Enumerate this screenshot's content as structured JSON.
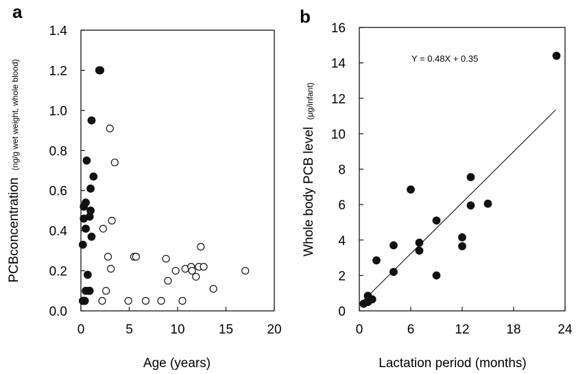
{
  "chart_data": [
    {
      "panel": "a",
      "type": "scatter",
      "xlabel": "Age (years)",
      "ylabel_main": "PCBconcentration",
      "ylabel_sub": "(ng/g wet  weight, whole blood)",
      "xlim": [
        0,
        20
      ],
      "ylim": [
        0,
        1.4
      ],
      "xticks": [
        0,
        5,
        10,
        15,
        20
      ],
      "yticks": [
        "0.0",
        "0.2",
        "0.4",
        "0.6",
        "0.8",
        "1.0",
        "1.2",
        "1.4"
      ],
      "grid": false,
      "series": [
        {
          "marker": "filled-circle",
          "color": "#111111",
          "points": [
            [
              0.2,
              0.05
            ],
            [
              0.3,
              0.05
            ],
            [
              0.4,
              0.05
            ],
            [
              0.2,
              0.33
            ],
            [
              0.3,
              0.46
            ],
            [
              0.3,
              0.52
            ],
            [
              0.5,
              0.41
            ],
            [
              0.5,
              0.54
            ],
            [
              0.6,
              0.75
            ],
            [
              0.5,
              0.1
            ],
            [
              0.7,
              0.18
            ],
            [
              0.8,
              0.1
            ],
            [
              0.9,
              0.1
            ],
            [
              0.9,
              0.47
            ],
            [
              1.0,
              0.5
            ],
            [
              1.0,
              0.61
            ],
            [
              1.1,
              0.37
            ],
            [
              1.1,
              0.95
            ],
            [
              1.3,
              0.67
            ],
            [
              1.9,
              1.2
            ],
            [
              2.0,
              1.2
            ]
          ]
        },
        {
          "marker": "open-circle",
          "color": "#111111",
          "points": [
            [
              2.2,
              0.05
            ],
            [
              2.3,
              0.41
            ],
            [
              2.6,
              0.1
            ],
            [
              2.8,
              0.27
            ],
            [
              3.0,
              0.91
            ],
            [
              3.1,
              0.21
            ],
            [
              3.2,
              0.45
            ],
            [
              3.5,
              0.74
            ],
            [
              4.9,
              0.05
            ],
            [
              5.5,
              0.27
            ],
            [
              5.7,
              0.27
            ],
            [
              6.7,
              0.05
            ],
            [
              8.3,
              0.05
            ],
            [
              8.8,
              0.26
            ],
            [
              9.0,
              0.15
            ],
            [
              9.8,
              0.2
            ],
            [
              10.5,
              0.05
            ],
            [
              10.8,
              0.21
            ],
            [
              11.4,
              0.22
            ],
            [
              11.5,
              0.2
            ],
            [
              11.9,
              0.17
            ],
            [
              12.2,
              0.22
            ],
            [
              12.4,
              0.32
            ],
            [
              12.7,
              0.22
            ],
            [
              13.7,
              0.11
            ],
            [
              17.0,
              0.2
            ]
          ]
        }
      ]
    },
    {
      "panel": "b",
      "type": "scatter",
      "xlabel": "Lactation period (months)",
      "ylabel_main": "Whole body PCB level",
      "ylabel_sub": "(μg/infant)",
      "xlim": [
        0,
        24
      ],
      "ylim": [
        0,
        16
      ],
      "xticks": [
        0,
        6,
        12,
        18,
        24
      ],
      "yticks": [
        0,
        2,
        4,
        6,
        8,
        10,
        12,
        14,
        16
      ],
      "grid": false,
      "annotation": "Y =  0.48X + 0.35",
      "regression": {
        "slope": 0.48,
        "intercept": 0.35,
        "x_range": [
          0.5,
          22.9
        ]
      },
      "series": [
        {
          "marker": "filled-circle",
          "color": "#111111",
          "points": [
            [
              0.5,
              0.4
            ],
            [
              1.0,
              0.5
            ],
            [
              1.0,
              0.85
            ],
            [
              1.5,
              0.65
            ],
            [
              2.0,
              2.85
            ],
            [
              4.0,
              2.2
            ],
            [
              4.0,
              3.7
            ],
            [
              6.0,
              6.85
            ],
            [
              7.0,
              3.4
            ],
            [
              7.0,
              3.85
            ],
            [
              9.0,
              2.0
            ],
            [
              9.0,
              5.1
            ],
            [
              12.0,
              3.65
            ],
            [
              12.0,
              4.15
            ],
            [
              13.0,
              5.95
            ],
            [
              13.0,
              7.55
            ],
            [
              15.0,
              6.05
            ],
            [
              23.0,
              14.4
            ]
          ]
        }
      ]
    }
  ]
}
